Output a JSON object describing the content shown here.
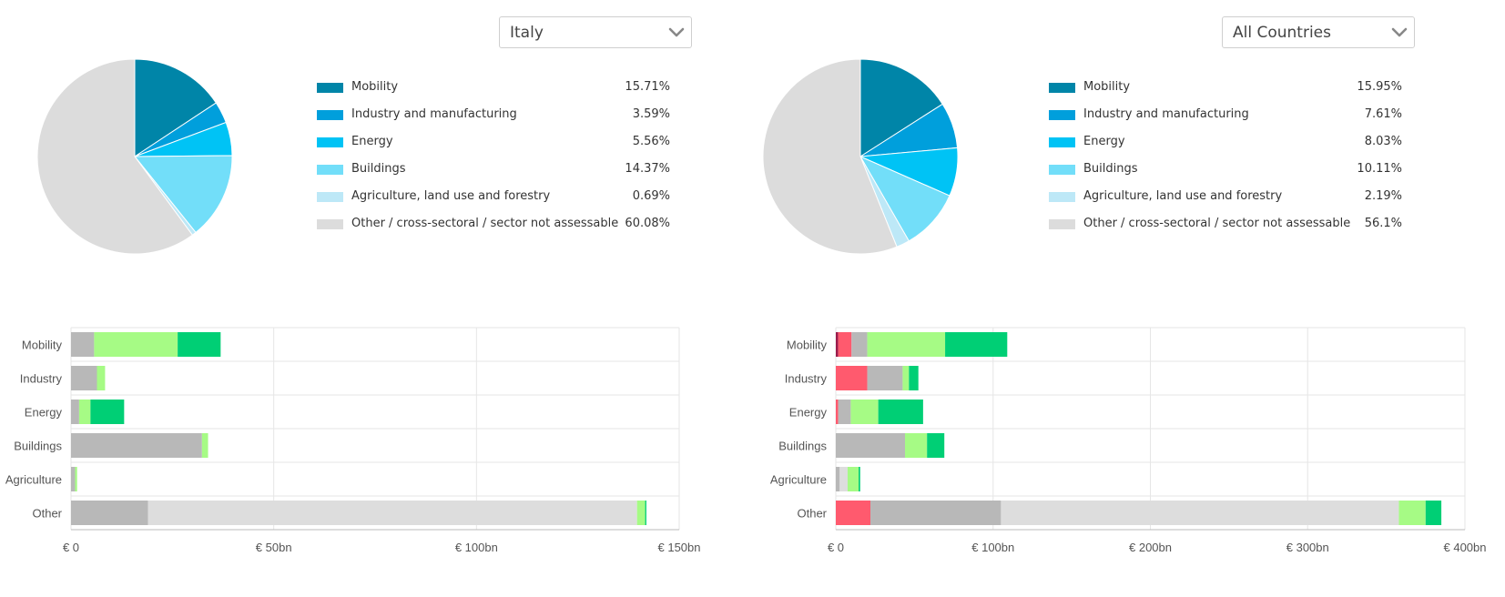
{
  "colors": {
    "pie": [
      "#0085a8",
      "#009fdc",
      "#00c3f5",
      "#72def9",
      "#bde8f7",
      "#dcdcdc"
    ],
    "neg_dark": "#9b1b4b",
    "red": "#ff5a6e",
    "grey": "#b8b8b8",
    "light_grey": "#dddddd",
    "light_green": "#a6fb85",
    "green": "#00cf75"
  },
  "panels": [
    {
      "selector": {
        "value": "Italy"
      },
      "pie": {
        "items": [
          {
            "label": "Mobility",
            "value_text": "15.71%",
            "value": 15.71
          },
          {
            "label": "Industry and manufacturing",
            "value_text": "3.59%",
            "value": 3.59
          },
          {
            "label": "Energy",
            "value_text": "5.56%",
            "value": 5.56
          },
          {
            "label": "Buildings",
            "value_text": "14.37%",
            "value": 14.37
          },
          {
            "label": "Agriculture, land use and forestry",
            "value_text": "0.69%",
            "value": 0.69
          },
          {
            "label": "Other / cross-sectoral / sector not assessable",
            "value_text": "60.08%",
            "value": 60.08
          }
        ]
      },
      "bars": {
        "xmax": 150,
        "ticks": [
          0,
          50,
          100,
          150
        ],
        "tick_labels": [
          "€ 0",
          "€ 50bn",
          "€ 100bn",
          "€ 150bn"
        ],
        "categories": [
          "Mobility",
          "Industry",
          "Energy",
          "Buildings",
          "Agriculture",
          "Other"
        ],
        "segments": [
          [
            [
              "grey",
              5.7
            ],
            [
              "light_green",
              20.6
            ],
            [
              "green",
              10.6
            ]
          ],
          [
            [
              "grey",
              6.4
            ],
            [
              "light_green",
              2.0
            ]
          ],
          [
            [
              "grey",
              2.0
            ],
            [
              "light_green",
              2.8
            ],
            [
              "green",
              8.3
            ]
          ],
          [
            [
              "grey",
              32.3
            ],
            [
              "light_green",
              1.5
            ]
          ],
          [
            [
              "grey",
              1.0
            ],
            [
              "light_green",
              0.5
            ]
          ],
          [
            [
              "grey",
              19.0
            ],
            [
              "light_grey",
              120.6
            ],
            [
              "light_green",
              2.0
            ],
            [
              "green",
              0.3
            ]
          ]
        ]
      }
    },
    {
      "selector": {
        "value": "All Countries"
      },
      "pie": {
        "items": [
          {
            "label": "Mobility",
            "value_text": "15.95%",
            "value": 15.95
          },
          {
            "label": "Industry and manufacturing",
            "value_text": "7.61%",
            "value": 7.61
          },
          {
            "label": "Energy",
            "value_text": "8.03%",
            "value": 8.03
          },
          {
            "label": "Buildings",
            "value_text": "10.11%",
            "value": 10.11
          },
          {
            "label": "Agriculture, land use and forestry",
            "value_text": "2.19%",
            "value": 2.19
          },
          {
            "label": "Other / cross-sectoral / sector not assessable",
            "value_text": "56.1%",
            "value": 56.1
          }
        ]
      },
      "bars": {
        "xmax": 400,
        "ticks": [
          0,
          100,
          200,
          300,
          400
        ],
        "tick_labels": [
          "€ 0",
          "€ 100bn",
          "€ 200bn",
          "€ 300bn",
          "€ 400bn"
        ],
        "categories": [
          "Mobility",
          "Industry",
          "Energy",
          "Buildings",
          "Agriculture",
          "Other"
        ],
        "segments": [
          [
            [
              "neg_dark",
              1.5
            ],
            [
              "red",
              8.5
            ],
            [
              "grey",
              10.0
            ],
            [
              "light_green",
              49.5
            ],
            [
              "green",
              39.5
            ]
          ],
          [
            [
              "red",
              20.0
            ],
            [
              "grey",
              22.5
            ],
            [
              "light_green",
              4.0
            ],
            [
              "green",
              6.0
            ]
          ],
          [
            [
              "red",
              1.5
            ],
            [
              "grey",
              8.0
            ],
            [
              "light_green",
              17.5
            ],
            [
              "green",
              28.5
            ]
          ],
          [
            [
              "grey",
              44.0
            ],
            [
              "light_green",
              14.0
            ],
            [
              "green",
              11.0
            ]
          ],
          [
            [
              "grey",
              2.5
            ],
            [
              "light_grey",
              5.0
            ],
            [
              "light_green",
              7.0
            ],
            [
              "green",
              1.0
            ]
          ],
          [
            [
              "red",
              22.0
            ],
            [
              "grey",
              83.0
            ],
            [
              "light_grey",
              253.0
            ],
            [
              "light_green",
              17.0
            ],
            [
              "green",
              10.0
            ]
          ]
        ]
      }
    }
  ],
  "chart_data": [
    {
      "type": "pie",
      "categories": [
        "Mobility",
        "Industry and manufacturing",
        "Energy",
        "Buildings",
        "Agriculture, land use and forestry",
        "Other / cross-sectoral / sector not assessable"
      ],
      "values": [
        15.71,
        3.59,
        5.56,
        14.37,
        0.69,
        60.08
      ],
      "unit": "%"
    },
    {
      "type": "pie",
      "categories": [
        "Mobility",
        "Industry and manufacturing",
        "Energy",
        "Buildings",
        "Agriculture, land use and forestry",
        "Other / cross-sectoral / sector not assessable"
      ],
      "values": [
        15.95,
        7.61,
        8.03,
        10.11,
        2.19,
        56.1
      ],
      "unit": "%"
    },
    {
      "type": "bar",
      "orientation": "horizontal",
      "stacked": true,
      "categories": [
        "Mobility",
        "Industry",
        "Energy",
        "Buildings",
        "Agriculture",
        "Other"
      ],
      "xlim": [
        0,
        150
      ],
      "x_tick_labels": [
        "€ 0",
        "€ 50bn",
        "€ 100bn",
        "€ 150bn"
      ],
      "grid": true,
      "stack_colors": [
        "#b8b8b8",
        "#dddddd",
        "#a6fb85",
        "#00cf75"
      ],
      "stack_values": [
        [
          5.7,
          0,
          20.6,
          10.6
        ],
        [
          6.4,
          0,
          2.0,
          0
        ],
        [
          2.0,
          0,
          2.8,
          8.3
        ],
        [
          32.3,
          0,
          1.5,
          0
        ],
        [
          1.0,
          0,
          0.5,
          0
        ],
        [
          19.0,
          120.6,
          2.0,
          0.3
        ]
      ]
    },
    {
      "type": "bar",
      "orientation": "horizontal",
      "stacked": true,
      "categories": [
        "Mobility",
        "Industry",
        "Energy",
        "Buildings",
        "Agriculture",
        "Other"
      ],
      "xlim": [
        0,
        400
      ],
      "x_tick_labels": [
        "€ 0",
        "€ 100bn",
        "€ 200bn",
        "€ 300bn",
        "€ 400bn"
      ],
      "grid": true,
      "stack_colors": [
        "#9b1b4b",
        "#ff5a6e",
        "#b8b8b8",
        "#dddddd",
        "#a6fb85",
        "#00cf75"
      ],
      "stack_values": [
        [
          1.5,
          8.5,
          10.0,
          0,
          49.5,
          39.5
        ],
        [
          0,
          20.0,
          22.5,
          0,
          4.0,
          6.0
        ],
        [
          0,
          1.5,
          8.0,
          0,
          17.5,
          28.5
        ],
        [
          0,
          0,
          44.0,
          0,
          14.0,
          11.0
        ],
        [
          0,
          0,
          2.5,
          5.0,
          7.0,
          1.0
        ],
        [
          0,
          22.0,
          83.0,
          253.0,
          17.0,
          10.0
        ]
      ]
    }
  ]
}
